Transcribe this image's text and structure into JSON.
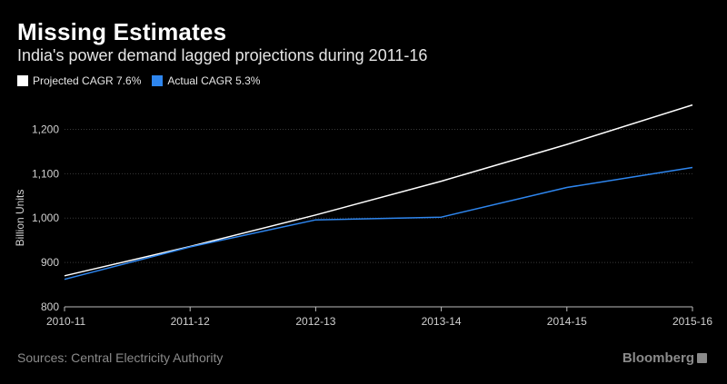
{
  "header": {
    "title": "Missing Estimates",
    "subtitle": "India's power demand lagged projections during 2011-16"
  },
  "footer": {
    "source": "Sources: Central Electricity Authority",
    "brand": "Bloomberg"
  },
  "chart_data": {
    "type": "line",
    "title": "Missing Estimates",
    "subtitle": "India's power demand lagged projections during 2011-16",
    "xlabel": "",
    "ylabel": "Billion Units",
    "categories": [
      "2010-11",
      "2011-12",
      "2012-13",
      "2013-14",
      "2014-15",
      "2015-16"
    ],
    "ylim": [
      800,
      1250
    ],
    "yticks": [
      800,
      900,
      1000,
      1100,
      1200
    ],
    "ytick_labels": [
      "800",
      "900",
      "1,000",
      "1,100",
      "1,200"
    ],
    "grid": true,
    "legend_position": "top-left",
    "series": [
      {
        "name": "Projected CAGR 7.6%",
        "color": "#ffffff",
        "values": [
          870,
          936,
          1007,
          1083,
          1166,
          1255
        ]
      },
      {
        "name": "Actual CAGR 5.3%",
        "color": "#2e86ef",
        "values": [
          862,
          935,
          996,
          1002,
          1069,
          1114
        ]
      }
    ]
  }
}
